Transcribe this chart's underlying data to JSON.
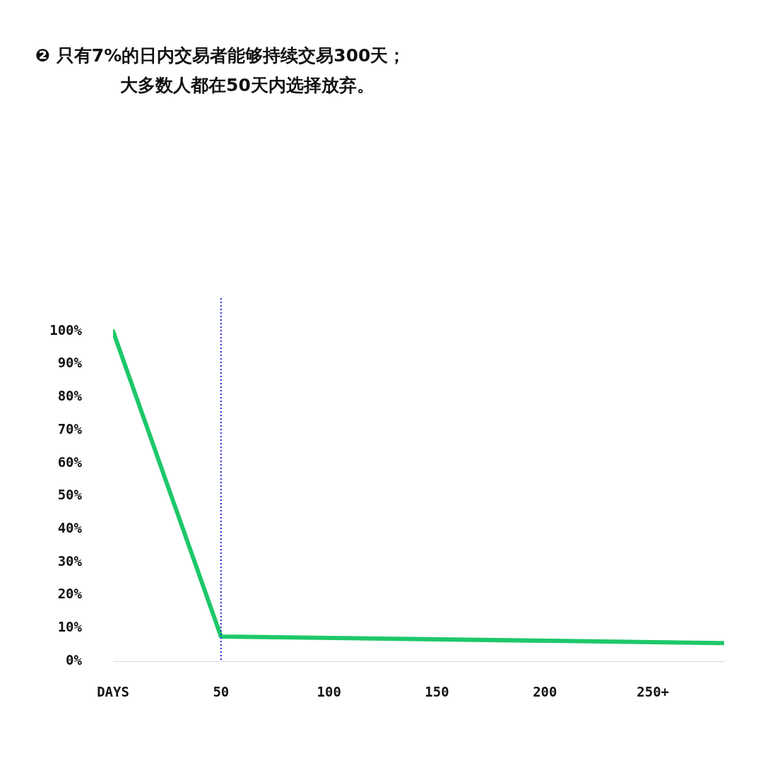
{
  "chart_data": {
    "type": "line",
    "title": "❷ 只有7%的日内交易者能够持续交易300天；大多数人都在50天内选择放弃。",
    "x": [
      0,
      50,
      283
    ],
    "series": [
      {
        "color": "#1ec86a",
        "values": [
          100,
          7.5,
          5.5
        ]
      }
    ],
    "xlim": [
      0,
      283
    ],
    "xticks": [
      {
        "value": 0,
        "label": "DAYS"
      },
      50,
      100,
      150,
      200,
      {
        "value": 250,
        "label": "250+"
      }
    ],
    "ylim": [
      0,
      110
    ],
    "yticks": [
      {
        "value": 0,
        "label": "0%"
      },
      {
        "value": 10,
        "label": "10%"
      },
      {
        "value": 20,
        "label": "20%"
      },
      {
        "value": 30,
        "label": "30%"
      },
      {
        "value": 40,
        "label": "40%"
      },
      {
        "value": 50,
        "label": "50%"
      },
      {
        "value": 60,
        "label": "60%"
      },
      {
        "value": 70,
        "label": "70%"
      },
      {
        "value": 80,
        "label": "80%"
      },
      {
        "value": 90,
        "label": "90%"
      },
      {
        "value": 100,
        "label": "100%"
      }
    ],
    "ref_lines": [
      {
        "axis": "x",
        "value": 50,
        "color": "#2424d8",
        "line_style": "dotted"
      }
    ],
    "grid": false,
    "legend": false,
    "marker": "none",
    "line_style": "solid"
  }
}
